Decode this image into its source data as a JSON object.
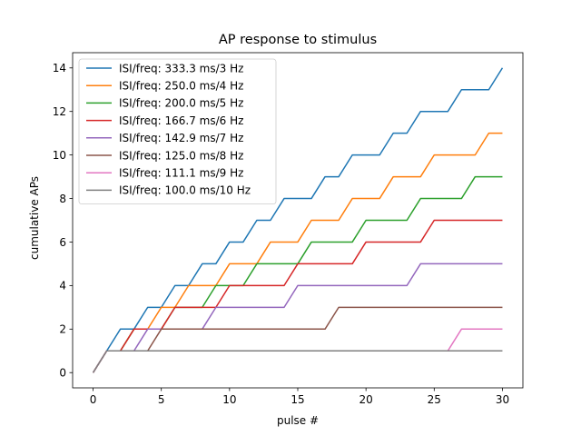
{
  "chart_data": {
    "type": "line",
    "title": "AP response to stimulus",
    "xlabel": "pulse #",
    "ylabel": "cumulative APs",
    "xlim": [
      -1.5,
      31.5
    ],
    "ylim": [
      -0.7,
      14.7
    ],
    "x_ticks": [
      0,
      5,
      10,
      15,
      20,
      25,
      30
    ],
    "y_ticks": [
      0,
      2,
      4,
      6,
      8,
      10,
      12,
      14
    ],
    "grid": false,
    "legend_position": "upper-left",
    "series": [
      {
        "name": "ISI/freq: 333.3 ms/3 Hz",
        "color": "#1f77b4",
        "values": [
          0,
          1,
          2,
          2,
          3,
          3,
          4,
          4,
          5,
          5,
          6,
          6,
          7,
          7,
          8,
          8,
          8,
          9,
          9,
          10,
          10,
          10,
          11,
          11,
          12,
          12,
          12,
          13,
          13,
          13,
          14
        ]
      },
      {
        "name": "ISI/freq: 250.0 ms/4 Hz",
        "color": "#ff7f0e",
        "values": [
          0,
          1,
          1,
          2,
          2,
          3,
          3,
          4,
          4,
          4,
          5,
          5,
          5,
          6,
          6,
          6,
          7,
          7,
          7,
          8,
          8,
          8,
          9,
          9,
          9,
          10,
          10,
          10,
          10,
          11,
          11
        ]
      },
      {
        "name": "ISI/freq: 200.0 ms/5 Hz",
        "color": "#2ca02c",
        "values": [
          0,
          1,
          1,
          2,
          2,
          2,
          3,
          3,
          3,
          4,
          4,
          4,
          5,
          5,
          5,
          5,
          6,
          6,
          6,
          6,
          7,
          7,
          7,
          7,
          8,
          8,
          8,
          8,
          9,
          9,
          9
        ]
      },
      {
        "name": "ISI/freq: 166.7 ms/6 Hz",
        "color": "#d62728",
        "values": [
          0,
          1,
          1,
          2,
          2,
          2,
          3,
          3,
          3,
          3,
          4,
          4,
          4,
          4,
          4,
          5,
          5,
          5,
          5,
          5,
          6,
          6,
          6,
          6,
          6,
          7,
          7,
          7,
          7,
          7,
          7
        ]
      },
      {
        "name": "ISI/freq: 142.9 ms/7 Hz",
        "color": "#9467bd",
        "values": [
          0,
          1,
          1,
          1,
          2,
          2,
          2,
          2,
          2,
          3,
          3,
          3,
          3,
          3,
          3,
          4,
          4,
          4,
          4,
          4,
          4,
          4,
          4,
          4,
          5,
          5,
          5,
          5,
          5,
          5,
          5
        ]
      },
      {
        "name": "ISI/freq: 125.0 ms/8 Hz",
        "color": "#8c564b",
        "values": [
          0,
          1,
          1,
          1,
          1,
          2,
          2,
          2,
          2,
          2,
          2,
          2,
          2,
          2,
          2,
          2,
          2,
          2,
          3,
          3,
          3,
          3,
          3,
          3,
          3,
          3,
          3,
          3,
          3,
          3,
          3
        ]
      },
      {
        "name": "ISI/freq: 111.1 ms/9 Hz",
        "color": "#e377c2",
        "values": [
          0,
          1,
          1,
          1,
          1,
          1,
          1,
          1,
          1,
          1,
          1,
          1,
          1,
          1,
          1,
          1,
          1,
          1,
          1,
          1,
          1,
          1,
          1,
          1,
          1,
          1,
          1,
          2,
          2,
          2,
          2
        ]
      },
      {
        "name": "ISI/freq: 100.0 ms/10 Hz",
        "color": "#7f7f7f",
        "values": [
          0,
          1,
          1,
          1,
          1,
          1,
          1,
          1,
          1,
          1,
          1,
          1,
          1,
          1,
          1,
          1,
          1,
          1,
          1,
          1,
          1,
          1,
          1,
          1,
          1,
          1,
          1,
          1,
          1,
          1,
          1
        ]
      }
    ]
  }
}
